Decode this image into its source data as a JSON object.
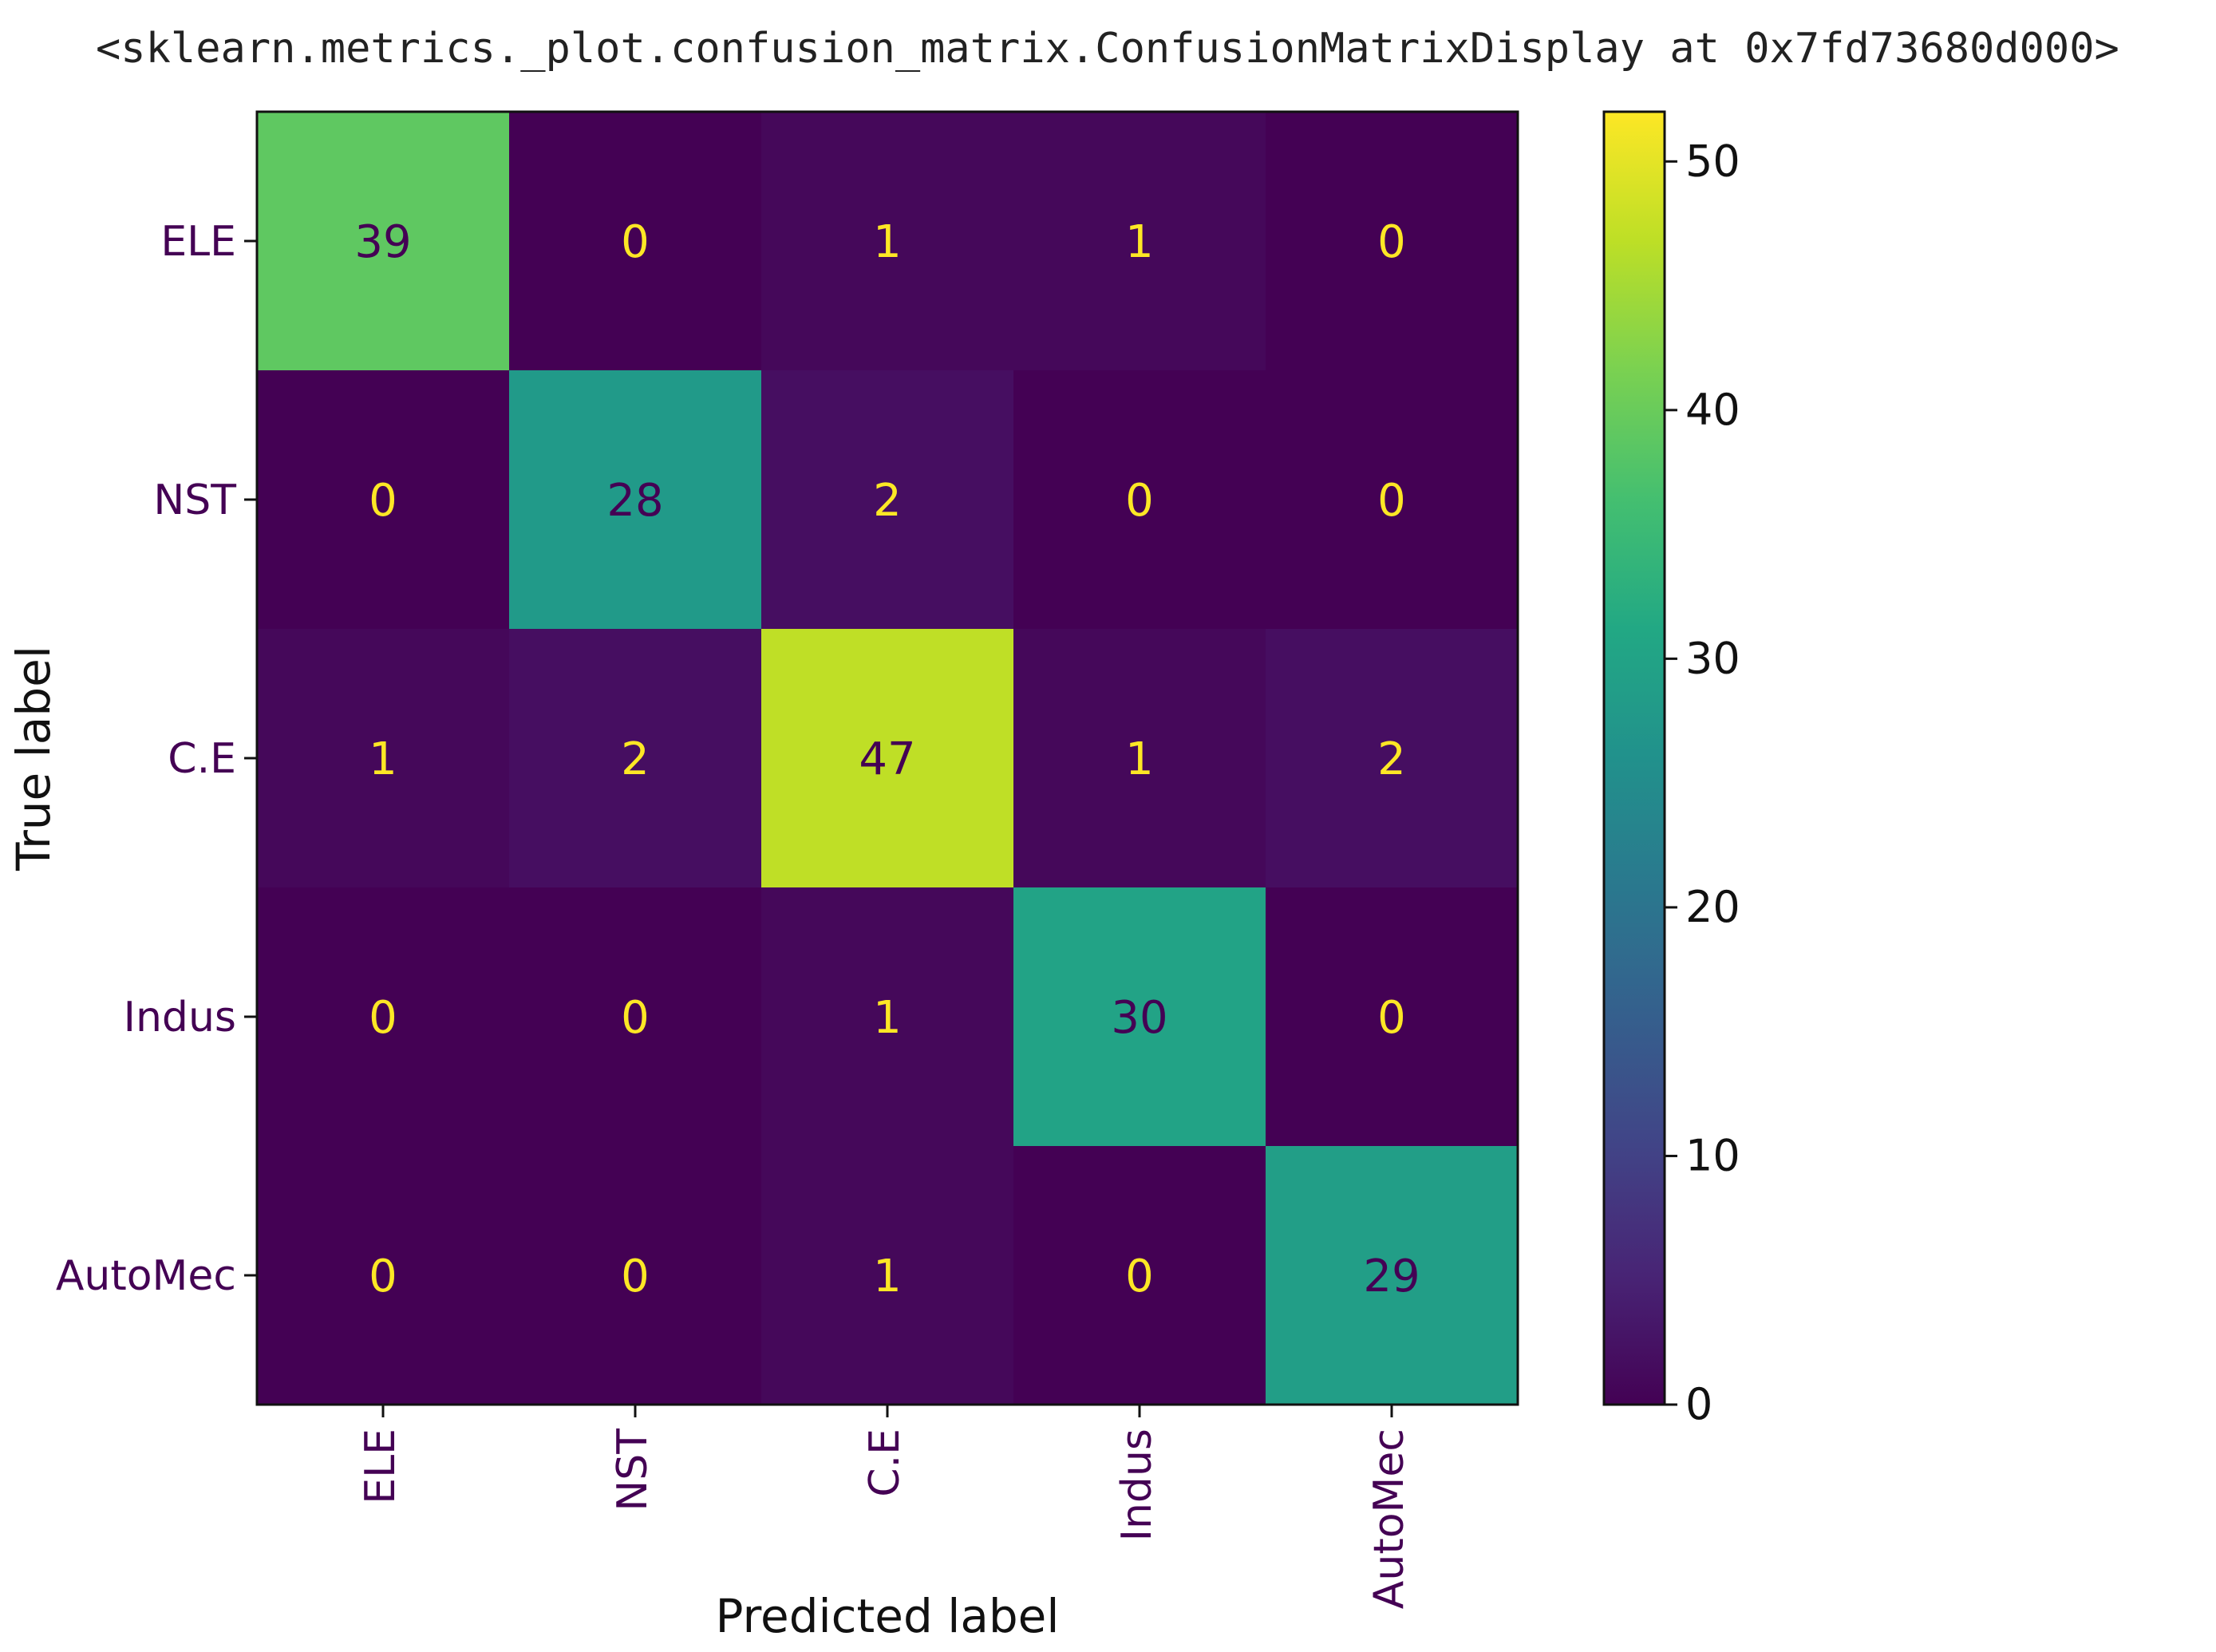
{
  "header": {
    "repr_text": "<sklearn.metrics._plot.confusion_matrix.ConfusionMatrixDisplay at 0x7fd73680d000>"
  },
  "chart_data": {
    "type": "heatmap",
    "title": "",
    "xlabel": "Predicted label",
    "ylabel": "True label",
    "x_categories": [
      "ELE",
      "NST",
      "C.E",
      "Indus",
      "AutoMec"
    ],
    "y_categories": [
      "ELE",
      "NST",
      "C.E",
      "Indus",
      "AutoMec"
    ],
    "matrix": [
      [
        39,
        0,
        1,
        1,
        0
      ],
      [
        0,
        28,
        2,
        0,
        0
      ],
      [
        1,
        2,
        47,
        1,
        2
      ],
      [
        0,
        0,
        1,
        30,
        0
      ],
      [
        0,
        0,
        1,
        0,
        29
      ]
    ],
    "colormap": "viridis",
    "colorbar": {
      "vmin": 0,
      "vmax": 52,
      "ticks": [
        0,
        10,
        20,
        30,
        40,
        50
      ],
      "tick_labels": [
        "0",
        "10",
        "20",
        "30",
        "40",
        "50"
      ]
    },
    "label_colors": {
      "x_tick_labels": "#440154",
      "y_tick_labels": "#440154",
      "light_text": "#fde725",
      "dark_text": "#440154"
    },
    "grid": false,
    "legend": "colorbar-right"
  }
}
